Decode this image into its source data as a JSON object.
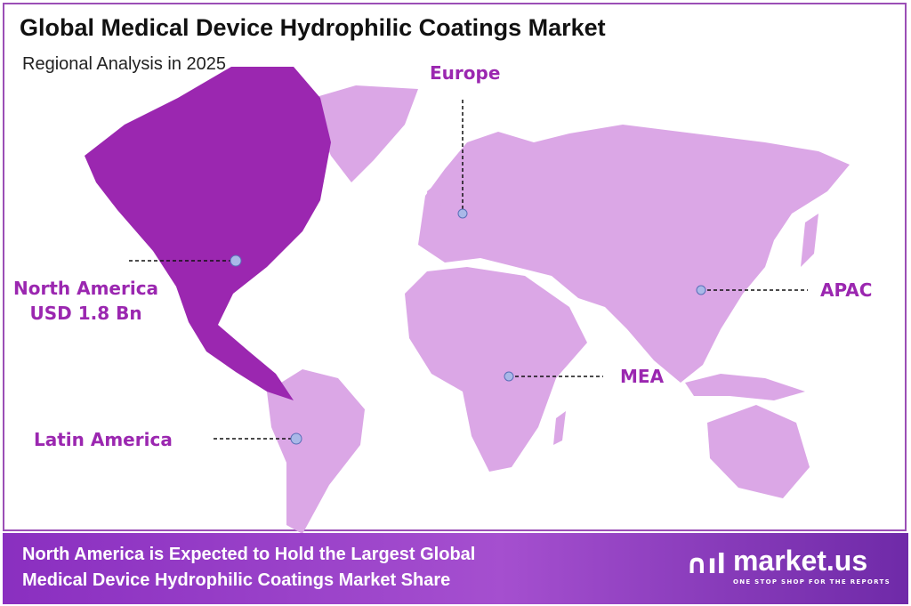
{
  "header": {
    "title": "Global Medical Device Hydrophilic Coatings Market",
    "subtitle": "Regional Analysis in 2025"
  },
  "regions": [
    {
      "name": "North America",
      "value": "USD 1.8 Bn",
      "highlighted": true
    },
    {
      "name": "Europe"
    },
    {
      "name": "APAC"
    },
    {
      "name": "MEA"
    },
    {
      "name": "Latin America"
    }
  ],
  "colors": {
    "highlight": "#9b27b0",
    "land": "#dba7e6",
    "label": "#9b27b0",
    "marker": "#a9b8e8"
  },
  "footer": {
    "line1": "North America is Expected to Hold the Largest Global",
    "line2": "Medical Device Hydrophilic Coatings Market Share"
  },
  "logo": {
    "name": "market.us",
    "tagline": "ONE STOP SHOP FOR THE REPORTS"
  }
}
